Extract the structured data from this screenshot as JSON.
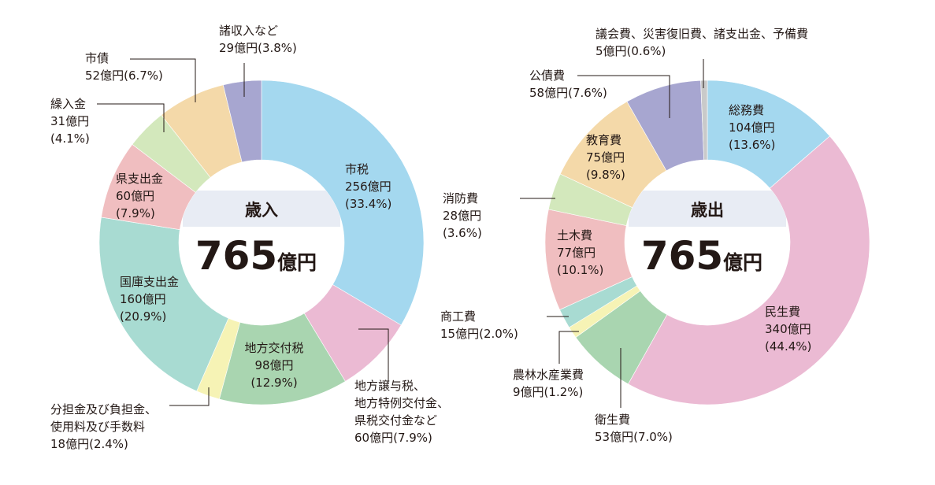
{
  "chart_data": [
    {
      "type": "pie",
      "title": "歳入",
      "total": {
        "number": "765",
        "unit": "億円"
      },
      "slices": [
        {
          "name": "市税",
          "value": 256,
          "text": [
            "市税",
            "256億円",
            "(33.4%)"
          ],
          "color": "#a4d8ef"
        },
        {
          "name": "地方譲与税、地方特例交付金、県税交付金など",
          "value": 60,
          "text": [
            "地方譲与税、",
            "地方特例交付金、",
            "県税交付金など",
            "60億円(7.9%)"
          ],
          "color": "#ebbad3"
        },
        {
          "name": "地方交付税",
          "value": 98,
          "text": [
            "地方交付税",
            "98億円",
            "(12.9%)"
          ],
          "color": "#a9d5b0"
        },
        {
          "name": "分担金及び負担金、使用料及び手数料",
          "value": 18,
          "text": [
            "分担金及び負担金、",
            "使用料及び手数料",
            "18億円(2.4%)"
          ],
          "color": "#f6f3b5"
        },
        {
          "name": "国庫支出金",
          "value": 160,
          "text": [
            "国庫支出金",
            "160億円",
            "(20.9%)"
          ],
          "color": "#a8dbd2"
        },
        {
          "name": "県支出金",
          "value": 60,
          "text": [
            "県支出金",
            "60億円",
            "(7.9%)"
          ],
          "color": "#f0bec0"
        },
        {
          "name": "繰入金",
          "value": 31,
          "text": [
            "繰入金",
            "31億円",
            "(4.1%)"
          ],
          "color": "#d3e8bc"
        },
        {
          "name": "市債",
          "value": 52,
          "text": [
            "市債",
            "52億円(6.7%)"
          ],
          "color": "#f4d9a9"
        },
        {
          "name": "諸収入など",
          "value": 29,
          "text": [
            "諸収入など",
            "29億円(3.8%)"
          ],
          "color": "#a7a6d0"
        }
      ]
    },
    {
      "type": "pie",
      "title": "歳出",
      "total": {
        "number": "765",
        "unit": "億円"
      },
      "slices": [
        {
          "name": "総務費",
          "value": 104,
          "text": [
            "総務費",
            "104億円",
            "(13.6%)"
          ],
          "color": "#a4d8ef"
        },
        {
          "name": "民生費",
          "value": 340,
          "text": [
            "民生費",
            "340億円",
            "(44.4%)"
          ],
          "color": "#ebbad3"
        },
        {
          "name": "衛生費",
          "value": 53,
          "text": [
            "衛生費",
            "53億円(7.0%)"
          ],
          "color": "#a9d5b0"
        },
        {
          "name": "農林水産業費",
          "value": 9,
          "text": [
            "農林水産業費",
            "9億円(1.2%)"
          ],
          "color": "#f6f3b5"
        },
        {
          "name": "商工費",
          "value": 15,
          "text": [
            "商工費",
            "15億円(2.0%)"
          ],
          "color": "#a8dbd2"
        },
        {
          "name": "土木費",
          "value": 77,
          "text": [
            "土木費",
            "77億円",
            "(10.1%)"
          ],
          "color": "#f0bec0"
        },
        {
          "name": "消防費",
          "value": 28,
          "text": [
            "消防費",
            "28億円",
            "(3.6%)"
          ],
          "color": "#d3e8bc"
        },
        {
          "name": "教育費",
          "value": 75,
          "text": [
            "教育費",
            "75億円",
            "(9.8%)"
          ],
          "color": "#f4d9a9"
        },
        {
          "name": "公債費",
          "value": 58,
          "text": [
            "公債費",
            "58億円(7.6%)"
          ],
          "color": "#a7a6d0"
        },
        {
          "name": "議会費、災害復旧費、諸支出金、予備費",
          "value": 5,
          "text": [
            "議会費、災害復旧費、諸支出金、予備費",
            "5億円(0.6%)"
          ],
          "color": "#c9caca"
        }
      ]
    }
  ]
}
